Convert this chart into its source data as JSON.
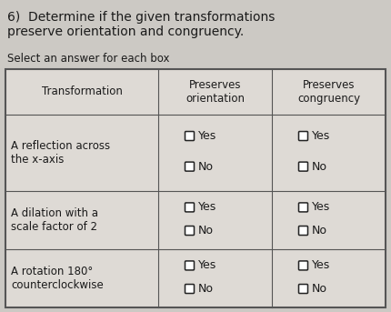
{
  "title_line1": "6)  Determine if the given transformations",
  "title_line2": "preserve orientation and congruency.",
  "subtitle": "Select an answer for each box",
  "background_color": "#ccc9c4",
  "table_bg": "#dedad5",
  "header_row": [
    "Transformation",
    "Preserves\norientation",
    "Preserves\ncongruency"
  ],
  "rows": [
    "A reflection across\nthe x-axis",
    "A dilation with a\nscale factor of 2",
    "A rotation 180°\ncounterclockwise"
  ],
  "font_size_title": 10,
  "font_size_subtitle": 8.5,
  "font_size_table": 8.5,
  "font_size_header": 8.5,
  "text_color": "#1a1a1a",
  "line_color": "#555555",
  "checkbox_color": "#222222",
  "checkbox_fill": "#ffffff"
}
